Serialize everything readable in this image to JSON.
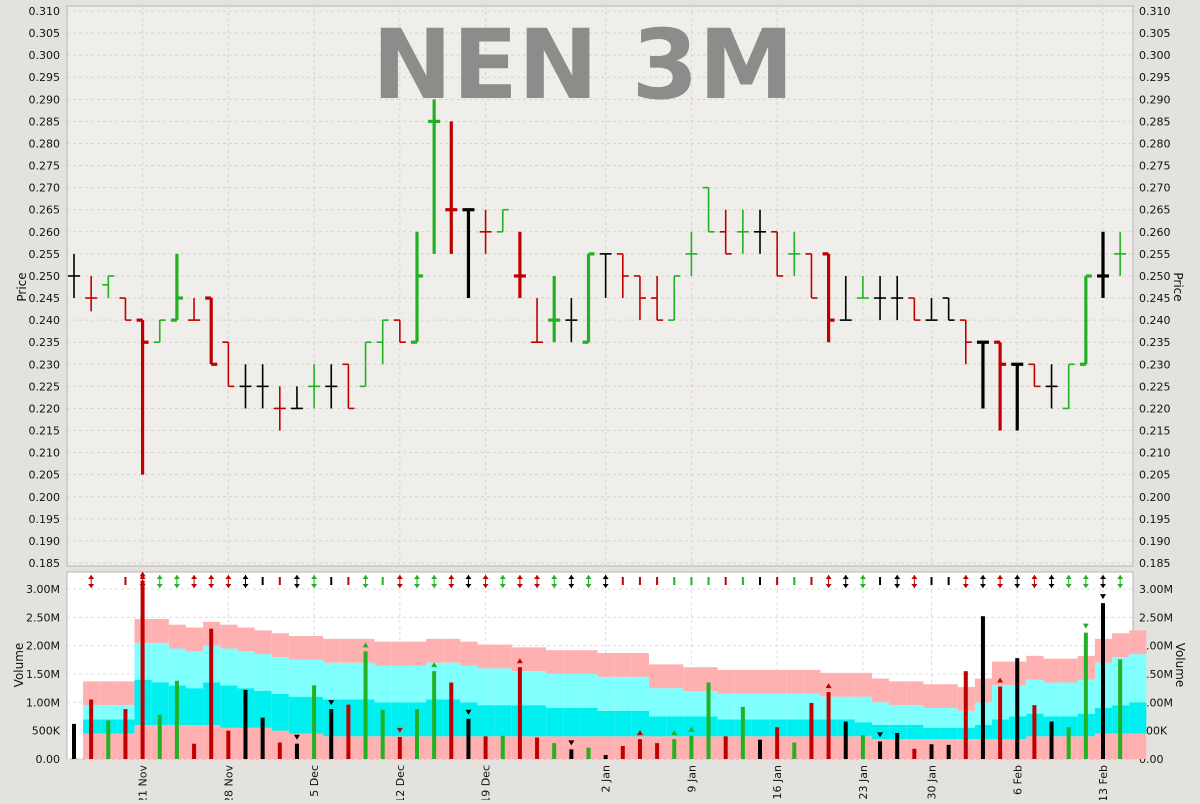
{
  "chart_data": {
    "type": "ohlc",
    "title": "NEN 3M",
    "price_axis": {
      "label": "Price",
      "ylim": [
        0.185,
        0.31
      ],
      "ticks": [
        "0.185",
        "0.190",
        "0.195",
        "0.200",
        "0.205",
        "0.210",
        "0.215",
        "0.220",
        "0.225",
        "0.230",
        "0.235",
        "0.240",
        "0.245",
        "0.250",
        "0.255",
        "0.260",
        "0.265",
        "0.270",
        "0.275",
        "0.280",
        "0.285",
        "0.290",
        "0.295",
        "0.300",
        "0.305",
        "0.310"
      ]
    },
    "volume_axis": {
      "label": "Volume",
      "ylim": [
        0,
        3300000
      ],
      "ticks": [
        {
          "v": 0,
          "t": "0.00"
        },
        {
          "v": 500000,
          "t": "500K"
        },
        {
          "v": 1000000,
          "t": "1.00M"
        },
        {
          "v": 1500000,
          "t": "1.50M"
        },
        {
          "v": 2000000,
          "t": "2.00M"
        },
        {
          "v": 2500000,
          "t": "2.50M"
        },
        {
          "v": 3000000,
          "t": "3.00M"
        }
      ]
    },
    "x_labels": [
      {
        "i": 4,
        "t": "21 Nov"
      },
      {
        "i": 9,
        "t": "28 Nov"
      },
      {
        "i": 14,
        "t": "5 Dec"
      },
      {
        "i": 19,
        "t": "12 Dec"
      },
      {
        "i": 24,
        "t": "19 Dec"
      },
      {
        "i": 31,
        "t": "2 Jan"
      },
      {
        "i": 36,
        "t": "9 Jan"
      },
      {
        "i": 41,
        "t": "16 Jan"
      },
      {
        "i": 46,
        "t": "23 Jan"
      },
      {
        "i": 50,
        "t": "30 Jan"
      },
      {
        "i": 55,
        "t": "6 Feb"
      },
      {
        "i": 60,
        "t": "13 Feb"
      }
    ],
    "colors": {
      "up": "#22b122",
      "down": "#c00000",
      "flat": "#000000",
      "band_pink": "#ffb0b0",
      "band_cyan_light": "#80ffff",
      "band_cyan": "#00f0f0"
    },
    "bars": [
      {
        "o": 0.25,
        "h": 0.255,
        "l": 0.245,
        "c": 0.25,
        "v": 620000,
        "col": "flat",
        "sig": ""
      },
      {
        "o": 0.245,
        "h": 0.25,
        "l": 0.242,
        "c": 0.245,
        "v": 1050000,
        "col": "down",
        "sig": "ud"
      },
      {
        "o": 0.248,
        "h": 0.25,
        "l": 0.245,
        "c": 0.25,
        "v": 680000,
        "col": "up",
        "sig": ""
      },
      {
        "o": 0.245,
        "h": 0.245,
        "l": 0.24,
        "c": 0.24,
        "v": 880000,
        "col": "down",
        "sig": "b"
      },
      {
        "o": 0.24,
        "h": 0.24,
        "l": 0.205,
        "c": 0.235,
        "v": 3150000,
        "col": "down",
        "sig": "ud"
      },
      {
        "o": 0.235,
        "h": 0.24,
        "l": 0.235,
        "c": 0.24,
        "v": 780000,
        "col": "up",
        "sig": "ud"
      },
      {
        "o": 0.24,
        "h": 0.255,
        "l": 0.24,
        "c": 0.245,
        "v": 1380000,
        "col": "up",
        "sig": "ud"
      },
      {
        "o": 0.24,
        "h": 0.245,
        "l": 0.24,
        "c": 0.24,
        "v": 270000,
        "col": "down",
        "sig": "ud"
      },
      {
        "o": 0.245,
        "h": 0.245,
        "l": 0.23,
        "c": 0.23,
        "v": 2300000,
        "col": "down",
        "sig": "ud"
      },
      {
        "o": 0.235,
        "h": 0.235,
        "l": 0.225,
        "c": 0.225,
        "v": 500000,
        "col": "down",
        "sig": "ud"
      },
      {
        "o": 0.225,
        "h": 0.23,
        "l": 0.22,
        "c": 0.225,
        "v": 1220000,
        "col": "flat",
        "sig": "ud"
      },
      {
        "o": 0.225,
        "h": 0.23,
        "l": 0.22,
        "c": 0.225,
        "v": 730000,
        "col": "flat",
        "sig": "b"
      },
      {
        "o": 0.22,
        "h": 0.225,
        "l": 0.215,
        "c": 0.22,
        "v": 290000,
        "col": "down",
        "sig": "b"
      },
      {
        "o": 0.22,
        "h": 0.225,
        "l": 0.22,
        "c": 0.22,
        "v": 270000,
        "col": "flat",
        "sig": "ud"
      },
      {
        "o": 0.225,
        "h": 0.23,
        "l": 0.22,
        "c": 0.225,
        "v": 1300000,
        "col": "up",
        "sig": "ud"
      },
      {
        "o": 0.225,
        "h": 0.23,
        "l": 0.22,
        "c": 0.225,
        "v": 880000,
        "col": "flat",
        "sig": "b"
      },
      {
        "o": 0.23,
        "h": 0.23,
        "l": 0.22,
        "c": 0.22,
        "v": 960000,
        "col": "down",
        "sig": "b"
      },
      {
        "o": 0.225,
        "h": 0.235,
        "l": 0.225,
        "c": 0.235,
        "v": 1900000,
        "col": "up",
        "sig": "ud"
      },
      {
        "o": 0.235,
        "h": 0.24,
        "l": 0.23,
        "c": 0.24,
        "v": 870000,
        "col": "up",
        "sig": "b"
      },
      {
        "o": 0.24,
        "h": 0.24,
        "l": 0.235,
        "c": 0.235,
        "v": 390000,
        "col": "down",
        "sig": "ud"
      },
      {
        "o": 0.235,
        "h": 0.26,
        "l": 0.235,
        "c": 0.25,
        "v": 880000,
        "col": "up",
        "sig": "ud"
      },
      {
        "o": 0.285,
        "h": 0.29,
        "l": 0.255,
        "c": 0.285,
        "v": 1550000,
        "col": "up",
        "sig": "ud"
      },
      {
        "o": 0.265,
        "h": 0.285,
        "l": 0.255,
        "c": 0.265,
        "v": 1350000,
        "col": "down",
        "sig": "ud"
      },
      {
        "o": 0.265,
        "h": 0.265,
        "l": 0.245,
        "c": 0.265,
        "v": 710000,
        "col": "flat",
        "sig": "ud"
      },
      {
        "o": 0.26,
        "h": 0.265,
        "l": 0.255,
        "c": 0.26,
        "v": 400000,
        "col": "down",
        "sig": "ud"
      },
      {
        "o": 0.26,
        "h": 0.265,
        "l": 0.26,
        "c": 0.265,
        "v": 410000,
        "col": "up",
        "sig": "ud"
      },
      {
        "o": 0.25,
        "h": 0.26,
        "l": 0.245,
        "c": 0.25,
        "v": 1620000,
        "col": "down",
        "sig": "ud"
      },
      {
        "o": 0.235,
        "h": 0.245,
        "l": 0.235,
        "c": 0.235,
        "v": 380000,
        "col": "down",
        "sig": "ud"
      },
      {
        "o": 0.24,
        "h": 0.25,
        "l": 0.235,
        "c": 0.24,
        "v": 280000,
        "col": "up",
        "sig": "ud"
      },
      {
        "o": 0.24,
        "h": 0.245,
        "l": 0.235,
        "c": 0.24,
        "v": 170000,
        "col": "flat",
        "sig": "ud"
      },
      {
        "o": 0.235,
        "h": 0.255,
        "l": 0.235,
        "c": 0.255,
        "v": 200000,
        "col": "up",
        "sig": "ud"
      },
      {
        "o": 0.255,
        "h": 0.255,
        "l": 0.245,
        "c": 0.255,
        "v": 70000,
        "col": "flat",
        "sig": "ud"
      },
      {
        "o": 0.255,
        "h": 0.255,
        "l": 0.245,
        "c": 0.25,
        "v": 230000,
        "col": "down",
        "sig": "b"
      },
      {
        "o": 0.25,
        "h": 0.25,
        "l": 0.24,
        "c": 0.245,
        "v": 350000,
        "col": "down",
        "sig": "b"
      },
      {
        "o": 0.245,
        "h": 0.25,
        "l": 0.24,
        "c": 0.24,
        "v": 280000,
        "col": "down",
        "sig": "b"
      },
      {
        "o": 0.24,
        "h": 0.25,
        "l": 0.24,
        "c": 0.25,
        "v": 350000,
        "col": "up",
        "sig": "b"
      },
      {
        "o": 0.255,
        "h": 0.26,
        "l": 0.25,
        "c": 0.255,
        "v": 410000,
        "col": "up",
        "sig": "b"
      },
      {
        "o": 0.27,
        "h": 0.27,
        "l": 0.26,
        "c": 0.26,
        "v": 1350000,
        "col": "up",
        "sig": "b"
      },
      {
        "o": 0.26,
        "h": 0.265,
        "l": 0.255,
        "c": 0.255,
        "v": 400000,
        "col": "down",
        "sig": "b"
      },
      {
        "o": 0.26,
        "h": 0.265,
        "l": 0.255,
        "c": 0.26,
        "v": 920000,
        "col": "up",
        "sig": "b"
      },
      {
        "o": 0.26,
        "h": 0.265,
        "l": 0.255,
        "c": 0.26,
        "v": 340000,
        "col": "flat",
        "sig": "b"
      },
      {
        "o": 0.26,
        "h": 0.26,
        "l": 0.25,
        "c": 0.25,
        "v": 560000,
        "col": "down",
        "sig": "b"
      },
      {
        "o": 0.255,
        "h": 0.26,
        "l": 0.25,
        "c": 0.255,
        "v": 290000,
        "col": "up",
        "sig": "b"
      },
      {
        "o": 0.255,
        "h": 0.255,
        "l": 0.245,
        "c": 0.245,
        "v": 990000,
        "col": "down",
        "sig": "b"
      },
      {
        "o": 0.255,
        "h": 0.255,
        "l": 0.235,
        "c": 0.24,
        "v": 1180000,
        "col": "down",
        "sig": "ud"
      },
      {
        "o": 0.24,
        "h": 0.25,
        "l": 0.24,
        "c": 0.24,
        "v": 660000,
        "col": "flat",
        "sig": "ud"
      },
      {
        "o": 0.245,
        "h": 0.25,
        "l": 0.245,
        "c": 0.245,
        "v": 420000,
        "col": "up",
        "sig": "ud"
      },
      {
        "o": 0.245,
        "h": 0.25,
        "l": 0.24,
        "c": 0.245,
        "v": 310000,
        "col": "flat",
        "sig": "b"
      },
      {
        "o": 0.245,
        "h": 0.25,
        "l": 0.24,
        "c": 0.245,
        "v": 460000,
        "col": "flat",
        "sig": "ud"
      },
      {
        "o": 0.245,
        "h": 0.245,
        "l": 0.24,
        "c": 0.24,
        "v": 180000,
        "col": "down",
        "sig": "ud"
      },
      {
        "o": 0.24,
        "h": 0.245,
        "l": 0.24,
        "c": 0.24,
        "v": 260000,
        "col": "flat",
        "sig": "b"
      },
      {
        "o": 0.245,
        "h": 0.245,
        "l": 0.24,
        "c": 0.24,
        "v": 250000,
        "col": "flat",
        "sig": "b"
      },
      {
        "o": 0.24,
        "h": 0.24,
        "l": 0.23,
        "c": 0.235,
        "v": 1550000,
        "col": "down",
        "sig": "ud"
      },
      {
        "o": 0.235,
        "h": 0.235,
        "l": 0.22,
        "c": 0.235,
        "v": 2520000,
        "col": "flat",
        "sig": "ud"
      },
      {
        "o": 0.235,
        "h": 0.235,
        "l": 0.215,
        "c": 0.23,
        "v": 1280000,
        "col": "down",
        "sig": "ud"
      },
      {
        "o": 0.23,
        "h": 0.23,
        "l": 0.215,
        "c": 0.23,
        "v": 1780000,
        "col": "flat",
        "sig": "ud"
      },
      {
        "o": 0.23,
        "h": 0.23,
        "l": 0.225,
        "c": 0.225,
        "v": 950000,
        "col": "down",
        "sig": "ud"
      },
      {
        "o": 0.225,
        "h": 0.23,
        "l": 0.22,
        "c": 0.225,
        "v": 660000,
        "col": "flat",
        "sig": "ud"
      },
      {
        "o": 0.22,
        "h": 0.23,
        "l": 0.22,
        "c": 0.23,
        "v": 560000,
        "col": "up",
        "sig": "ud"
      },
      {
        "o": 0.23,
        "h": 0.25,
        "l": 0.23,
        "c": 0.25,
        "v": 2230000,
        "col": "up",
        "sig": "ud"
      },
      {
        "o": 0.25,
        "h": 0.26,
        "l": 0.245,
        "c": 0.25,
        "v": 2750000,
        "col": "flat",
        "sig": "ud"
      },
      {
        "o": 0.255,
        "h": 0.26,
        "l": 0.25,
        "c": 0.255,
        "v": 1760000,
        "col": "up",
        "sig": "ud"
      }
    ],
    "bands": [
      {
        "a": 0.45,
        "b": 0.7,
        "c": 0.95
      },
      {
        "a": 0.45,
        "b": 0.7,
        "c": 0.95
      },
      {
        "a": 0.45,
        "b": 0.7,
        "c": 0.95
      },
      {
        "a": 0.45,
        "b": 0.7,
        "c": 0.95
      },
      {
        "a": 0.6,
        "b": 1.4,
        "c": 2.05
      },
      {
        "a": 0.6,
        "b": 1.35,
        "c": 2.05
      },
      {
        "a": 0.6,
        "b": 1.3,
        "c": 1.95
      },
      {
        "a": 0.6,
        "b": 1.25,
        "c": 1.9
      },
      {
        "a": 0.6,
        "b": 1.35,
        "c": 2.0
      },
      {
        "a": 0.55,
        "b": 1.3,
        "c": 1.95
      },
      {
        "a": 0.55,
        "b": 1.25,
        "c": 1.9
      },
      {
        "a": 0.55,
        "b": 1.2,
        "c": 1.85
      },
      {
        "a": 0.5,
        "b": 1.15,
        "c": 1.8
      },
      {
        "a": 0.45,
        "b": 1.1,
        "c": 1.75
      },
      {
        "a": 0.45,
        "b": 1.1,
        "c": 1.75
      },
      {
        "a": 0.4,
        "b": 1.05,
        "c": 1.7
      },
      {
        "a": 0.4,
        "b": 1.05,
        "c": 1.7
      },
      {
        "a": 0.4,
        "b": 1.05,
        "c": 1.7
      },
      {
        "a": 0.4,
        "b": 1.0,
        "c": 1.65
      },
      {
        "a": 0.4,
        "b": 1.0,
        "c": 1.65
      },
      {
        "a": 0.4,
        "b": 1.0,
        "c": 1.65
      },
      {
        "a": 0.4,
        "b": 1.05,
        "c": 1.7
      },
      {
        "a": 0.4,
        "b": 1.05,
        "c": 1.7
      },
      {
        "a": 0.4,
        "b": 1.0,
        "c": 1.65
      },
      {
        "a": 0.4,
        "b": 0.95,
        "c": 1.6
      },
      {
        "a": 0.4,
        "b": 0.95,
        "c": 1.6
      },
      {
        "a": 0.4,
        "b": 0.95,
        "c": 1.55
      },
      {
        "a": 0.4,
        "b": 0.95,
        "c": 1.55
      },
      {
        "a": 0.4,
        "b": 0.9,
        "c": 1.5
      },
      {
        "a": 0.4,
        "b": 0.9,
        "c": 1.5
      },
      {
        "a": 0.4,
        "b": 0.9,
        "c": 1.5
      },
      {
        "a": 0.4,
        "b": 0.85,
        "c": 1.45
      },
      {
        "a": 0.4,
        "b": 0.85,
        "c": 1.45
      },
      {
        "a": 0.4,
        "b": 0.85,
        "c": 1.45
      },
      {
        "a": 0.4,
        "b": 0.75,
        "c": 1.25
      },
      {
        "a": 0.4,
        "b": 0.75,
        "c": 1.25
      },
      {
        "a": 0.4,
        "b": 0.75,
        "c": 1.2
      },
      {
        "a": 0.4,
        "b": 0.75,
        "c": 1.2
      },
      {
        "a": 0.4,
        "b": 0.7,
        "c": 1.15
      },
      {
        "a": 0.4,
        "b": 0.7,
        "c": 1.15
      },
      {
        "a": 0.4,
        "b": 0.7,
        "c": 1.15
      },
      {
        "a": 0.4,
        "b": 0.7,
        "c": 1.15
      },
      {
        "a": 0.4,
        "b": 0.7,
        "c": 1.15
      },
      {
        "a": 0.4,
        "b": 0.7,
        "c": 1.15
      },
      {
        "a": 0.4,
        "b": 0.7,
        "c": 1.1
      },
      {
        "a": 0.4,
        "b": 0.7,
        "c": 1.1
      },
      {
        "a": 0.4,
        "b": 0.65,
        "c": 1.1
      },
      {
        "a": 0.35,
        "b": 0.6,
        "c": 1.0
      },
      {
        "a": 0.35,
        "b": 0.6,
        "c": 0.95
      },
      {
        "a": 0.35,
        "b": 0.6,
        "c": 0.95
      },
      {
        "a": 0.35,
        "b": 0.55,
        "c": 0.9
      },
      {
        "a": 0.35,
        "b": 0.55,
        "c": 0.9
      },
      {
        "a": 0.35,
        "b": 0.55,
        "c": 0.85
      },
      {
        "a": 0.35,
        "b": 0.6,
        "c": 1.0
      },
      {
        "a": 0.35,
        "b": 0.7,
        "c": 1.3
      },
      {
        "a": 0.35,
        "b": 0.75,
        "c": 1.3
      },
      {
        "a": 0.4,
        "b": 0.8,
        "c": 1.4
      },
      {
        "a": 0.4,
        "b": 0.75,
        "c": 1.35
      },
      {
        "a": 0.4,
        "b": 0.75,
        "c": 1.35
      },
      {
        "a": 0.4,
        "b": 0.8,
        "c": 1.4
      },
      {
        "a": 0.45,
        "b": 0.9,
        "c": 1.7
      },
      {
        "a": 0.45,
        "b": 0.95,
        "c": 1.8
      },
      {
        "a": 0.45,
        "b": 1.0,
        "c": 1.85
      }
    ]
  }
}
